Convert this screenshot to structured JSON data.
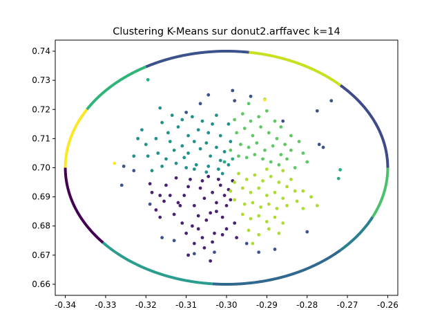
{
  "chart_data": {
    "type": "scatter",
    "title": "Clustering K-Means sur donut2.arffavec k=14",
    "xlabel": "",
    "ylabel": "",
    "xlim": [
      -0.3425,
      -0.2575
    ],
    "ylim": [
      0.6562,
      0.7438
    ],
    "xticks": [
      "-0.34",
      "-0.33",
      "-0.32",
      "-0.31",
      "-0.30",
      "-0.29",
      "-0.28",
      "-0.27",
      "-0.26"
    ],
    "yticks": [
      "0.66",
      "0.67",
      "0.68",
      "0.69",
      "0.70",
      "0.71",
      "0.72",
      "0.73",
      "0.74"
    ],
    "grid": false,
    "legend": "none",
    "ring": {
      "center": [
        -0.3,
        0.7
      ],
      "radius_x": 0.04,
      "radius_y": 0.04,
      "arcs": [
        {
          "from_deg": 0,
          "to_deg": 45,
          "color": "#3e4a89"
        },
        {
          "from_deg": 45,
          "to_deg": 82,
          "color": "#c8e020"
        },
        {
          "from_deg": 82,
          "to_deg": 120,
          "color": "#3b528b"
        },
        {
          "from_deg": 120,
          "to_deg": 135,
          "color": "#2fb47c"
        },
        {
          "from_deg": 135,
          "to_deg": 150,
          "color": "#2fb47c"
        },
        {
          "from_deg": 150,
          "to_deg": 180,
          "color": "#fde725"
        },
        {
          "from_deg": 180,
          "to_deg": 220,
          "color": "#440154"
        },
        {
          "from_deg": 220,
          "to_deg": 265,
          "color": "#2a9d8f"
        },
        {
          "from_deg": 265,
          "to_deg": 315,
          "color": "#31688e"
        },
        {
          "from_deg": 315,
          "to_deg": 335,
          "color": "#2b7f8e"
        },
        {
          "from_deg": 335,
          "to_deg": 360,
          "color": "#4ac16d"
        }
      ]
    },
    "clusters": [
      {
        "color": "#482173",
        "points": [
          [
            -0.3185,
            0.6915
          ],
          [
            -0.3155,
            0.6885
          ],
          [
            -0.3175,
            0.6855
          ],
          [
            -0.312,
            0.688
          ],
          [
            -0.3105,
            0.6905
          ],
          [
            -0.308,
            0.687
          ],
          [
            -0.3065,
            0.693
          ],
          [
            -0.3055,
            0.6895
          ],
          [
            -0.3035,
            0.6915
          ],
          [
            -0.3025,
            0.688
          ],
          [
            -0.3015,
            0.694
          ],
          [
            -0.3005,
            0.6905
          ],
          [
            -0.3095,
            0.6935
          ],
          [
            -0.314,
            0.6905
          ],
          [
            -0.313,
            0.684
          ],
          [
            -0.311,
            0.681
          ],
          [
            -0.3085,
            0.68
          ],
          [
            -0.307,
            0.6835
          ],
          [
            -0.305,
            0.682
          ],
          [
            -0.304,
            0.6845
          ],
          [
            -0.3025,
            0.685
          ],
          [
            -0.301,
            0.683
          ],
          [
            -0.3,
            0.687
          ],
          [
            -0.2995,
            0.6925
          ],
          [
            -0.299,
            0.689
          ],
          [
            -0.303,
            0.6775
          ],
          [
            -0.306,
            0.676
          ],
          [
            -0.308,
            0.674
          ],
          [
            -0.3055,
            0.6725
          ],
          [
            -0.3035,
            0.6745
          ],
          [
            -0.301,
            0.677
          ],
          [
            -0.3095,
            0.67
          ],
          [
            -0.304,
            0.668
          ],
          [
            -0.3,
            0.679
          ],
          [
            -0.2975,
            0.676
          ],
          [
            -0.3115,
            0.687
          ],
          [
            -0.315,
            0.694
          ],
          [
            -0.309,
            0.696
          ],
          [
            -0.306,
            0.6955
          ],
          [
            -0.302,
            0.696
          ],
          [
            -0.2985,
            0.6955
          ],
          [
            -0.3045,
            0.697
          ],
          [
            -0.3125,
            0.6965
          ],
          [
            -0.3165,
            0.683
          ],
          [
            -0.31,
            0.6775
          ],
          [
            -0.307,
            0.679
          ],
          [
            -0.3165,
            0.6905
          ],
          [
            -0.319,
            0.6945
          ],
          [
            -0.298,
            0.681
          ]
        ]
      },
      {
        "color": "#21918c",
        "points": [
          [
            -0.3195,
            0.704
          ],
          [
            -0.317,
            0.705
          ],
          [
            -0.315,
            0.703
          ],
          [
            -0.313,
            0.706
          ],
          [
            -0.311,
            0.7075
          ],
          [
            -0.3095,
            0.705
          ],
          [
            -0.308,
            0.709
          ],
          [
            -0.3065,
            0.7065
          ],
          [
            -0.305,
            0.7085
          ],
          [
            -0.304,
            0.704
          ],
          [
            -0.3025,
            0.707
          ],
          [
            -0.3015,
            0.7025
          ],
          [
            -0.3005,
            0.7055
          ],
          [
            -0.2995,
            0.701
          ],
          [
            -0.302,
            0.6995
          ],
          [
            -0.3045,
            0.7005
          ],
          [
            -0.3075,
            0.701
          ],
          [
            -0.31,
            0.7
          ],
          [
            -0.3125,
            0.7015
          ],
          [
            -0.316,
            0.7005
          ],
          [
            -0.3185,
            0.699
          ],
          [
            -0.32,
            0.708
          ],
          [
            -0.3175,
            0.71
          ],
          [
            -0.3145,
            0.712
          ],
          [
            -0.312,
            0.714
          ],
          [
            -0.3095,
            0.711
          ],
          [
            -0.307,
            0.713
          ],
          [
            -0.3045,
            0.712
          ],
          [
            -0.3015,
            0.711
          ],
          [
            -0.299,
            0.709
          ],
          [
            -0.3035,
            0.715
          ],
          [
            -0.306,
            0.716
          ],
          [
            -0.3085,
            0.7175
          ],
          [
            -0.311,
            0.7165
          ],
          [
            -0.3135,
            0.718
          ],
          [
            -0.316,
            0.7155
          ],
          [
            -0.321,
            0.713
          ],
          [
            -0.322,
            0.71
          ],
          [
            -0.323,
            0.704
          ],
          [
            -0.305,
            0.6985
          ],
          [
            -0.301,
            0.698
          ],
          [
            -0.314,
            0.709
          ],
          [
            -0.3165,
            0.7205
          ],
          [
            -0.3025,
            0.718
          ],
          [
            -0.2995,
            0.715
          ],
          [
            -0.3105,
            0.7035
          ],
          [
            -0.308,
            0.6995
          ]
        ]
      },
      {
        "color": "#5ec962",
        "points": [
          [
            -0.2975,
            0.712
          ],
          [
            -0.2955,
            0.7135
          ],
          [
            -0.2935,
            0.711
          ],
          [
            -0.2915,
            0.714
          ],
          [
            -0.2895,
            0.712
          ],
          [
            -0.2875,
            0.71
          ],
          [
            -0.2855,
            0.708
          ],
          [
            -0.284,
            0.706
          ],
          [
            -0.2965,
            0.708
          ],
          [
            -0.2945,
            0.707
          ],
          [
            -0.2925,
            0.7085
          ],
          [
            -0.2905,
            0.706
          ],
          [
            -0.2885,
            0.7075
          ],
          [
            -0.2865,
            0.7045
          ],
          [
            -0.297,
            0.704
          ],
          [
            -0.295,
            0.7035
          ],
          [
            -0.293,
            0.7045
          ],
          [
            -0.291,
            0.703
          ],
          [
            -0.289,
            0.702
          ],
          [
            -0.287,
            0.701
          ],
          [
            -0.285,
            0.703
          ],
          [
            -0.283,
            0.7
          ],
          [
            -0.299,
            0.706
          ],
          [
            -0.298,
            0.7165
          ],
          [
            -0.296,
            0.7185
          ],
          [
            -0.294,
            0.716
          ],
          [
            -0.292,
            0.7175
          ],
          [
            -0.29,
            0.7195
          ],
          [
            -0.288,
            0.716
          ],
          [
            -0.2865,
            0.714
          ],
          [
            -0.2905,
            0.7235
          ],
          [
            -0.2945,
            0.722
          ],
          [
            -0.284,
            0.711
          ],
          [
            -0.282,
            0.709
          ],
          [
            -0.281,
            0.705
          ],
          [
            -0.28,
            0.702
          ]
        ]
      },
      {
        "color": "#addc30",
        "points": [
          [
            -0.297,
            0.698
          ],
          [
            -0.295,
            0.696
          ],
          [
            -0.293,
            0.6975
          ],
          [
            -0.291,
            0.6955
          ],
          [
            -0.289,
            0.697
          ],
          [
            -0.287,
            0.695
          ],
          [
            -0.285,
            0.6935
          ],
          [
            -0.283,
            0.692
          ],
          [
            -0.296,
            0.693
          ],
          [
            -0.294,
            0.6915
          ],
          [
            -0.292,
            0.693
          ],
          [
            -0.29,
            0.6905
          ],
          [
            -0.288,
            0.6915
          ],
          [
            -0.286,
            0.6895
          ],
          [
            -0.298,
            0.689
          ],
          [
            -0.2955,
            0.6875
          ],
          [
            -0.2935,
            0.688
          ],
          [
            -0.2915,
            0.6865
          ],
          [
            -0.2895,
            0.6875
          ],
          [
            -0.2875,
            0.686
          ],
          [
            -0.285,
            0.687
          ],
          [
            -0.2825,
            0.6885
          ],
          [
            -0.296,
            0.684
          ],
          [
            -0.294,
            0.6825
          ],
          [
            -0.292,
            0.6835
          ],
          [
            -0.29,
            0.6815
          ],
          [
            -0.288,
            0.683
          ],
          [
            -0.286,
            0.681
          ],
          [
            -0.2945,
            0.6785
          ],
          [
            -0.292,
            0.677
          ],
          [
            -0.2895,
            0.679
          ],
          [
            -0.287,
            0.6775
          ],
          [
            -0.281,
            0.686
          ],
          [
            -0.279,
            0.69
          ],
          [
            -0.2775,
            0.687
          ],
          [
            -0.298,
            0.695
          ],
          [
            -0.299,
            0.692
          ],
          [
            -0.284,
            0.696
          ],
          [
            -0.286,
            0.699
          ],
          [
            -0.29,
            0.6995
          ],
          [
            -0.2935,
            0.674
          ],
          [
            -0.281,
            0.692
          ]
        ]
      },
      {
        "color": "#3b528b",
        "points": [
          [
            -0.2985,
            0.7265
          ],
          [
            -0.294,
            0.7245
          ],
          [
            -0.3045,
            0.725
          ],
          [
            -0.31,
            0.719
          ],
          [
            -0.316,
            0.676
          ],
          [
            -0.313,
            0.675
          ],
          [
            -0.295,
            0.674
          ],
          [
            -0.288,
            0.672
          ],
          [
            -0.28,
            0.678
          ],
          [
            -0.2775,
            0.7195
          ],
          [
            -0.274,
            0.723
          ],
          [
            -0.277,
            0.708
          ],
          [
            -0.276,
            0.707
          ],
          [
            -0.298,
            0.723
          ],
          [
            -0.3065,
            0.722
          ],
          [
            -0.303,
            0.671
          ],
          [
            -0.292,
            0.671
          ],
          [
            -0.323,
            0.699
          ],
          [
            -0.3255,
            0.7005
          ],
          [
            -0.326,
            0.694
          ],
          [
            -0.319,
            0.6875
          ],
          [
            -0.308,
            0.6705
          ],
          [
            -0.286,
            0.716
          ]
        ]
      },
      {
        "color": "#27ad81",
        "points": [
          [
            -0.3195,
            0.7302
          ],
          [
            -0.2718,
            0.6993
          ],
          [
            -0.2722,
            0.6963
          ],
          [
            -0.3005,
            0.702
          ],
          [
            -0.2985,
            0.703
          ]
        ]
      },
      {
        "color": "#fde725",
        "points": [
          [
            -0.3278,
            0.7015
          ],
          [
            -0.2905,
            0.7233
          ]
        ]
      }
    ]
  }
}
